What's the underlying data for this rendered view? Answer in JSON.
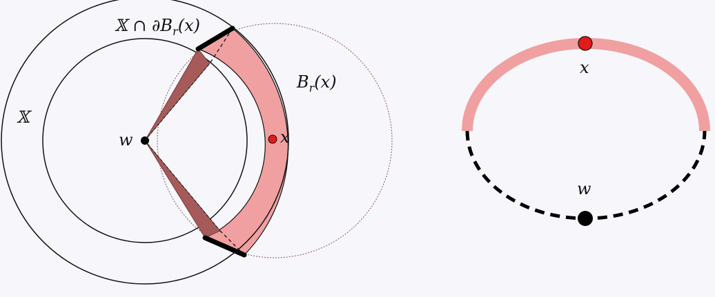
{
  "left_figure": {
    "labels": {
      "boundary_intersection": "𝕏 ∩ ∂B",
      "boundary_intersection_sub": "r",
      "boundary_intersection_tail": "(x)",
      "ball": "B",
      "ball_sub": "r",
      "ball_tail": "(x)",
      "space": "𝕏",
      "w": "w",
      "x": "x"
    }
  },
  "right_figure": {
    "labels": {
      "x": "x",
      "w": "w"
    }
  },
  "colors": {
    "annulus_fill": "#f0a0a0",
    "wedge_fill": "#a65a5a",
    "point_x": "#e21b1b",
    "stroke": "#111111",
    "background": "#f7f7fb"
  }
}
